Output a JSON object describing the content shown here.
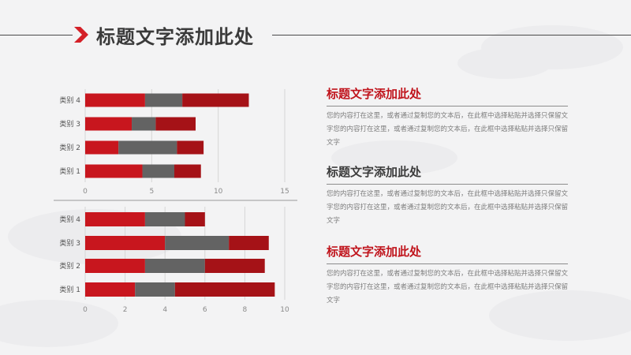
{
  "header": {
    "title": "标题文字添加此处"
  },
  "sections": [
    {
      "title": "标题文字添加此处",
      "body": "您的内容打在这里，或者通过复制您的文本后，在此框中选择粘贴并选择只保留文字您的内容打在这里，或者通过复制您的文本后，在此框中选择粘贴并选择只保留文字"
    },
    {
      "title": "标题文字添加此处",
      "body": "您的内容打在这里，或者通过复制您的文本后，在此框中选择粘贴并选择只保留文字您的内容打在这里，或者通过复制您的文本后，在此框中选择粘贴并选择只保留文字"
    },
    {
      "title": "标题文字添加此处",
      "body": "您的内容打在这里，或者通过复制您的文本后，在此框中选择粘贴并选择只保留文字您的内容打在这里，或者通过复制您的文本后，在此框中选择粘贴并选择只保留文字"
    }
  ],
  "colors": {
    "series1": "#c8161e",
    "series2": "#636363",
    "series3": "#a51217",
    "accent": "#d42027"
  },
  "chart_data": [
    {
      "type": "bar",
      "orientation": "horizontal",
      "stacked": true,
      "categories": [
        "类别 1",
        "类别 2",
        "类别 3",
        "类别 4"
      ],
      "series": [
        {
          "values": [
            4.3,
            2.5,
            3.5,
            4.5
          ]
        },
        {
          "values": [
            2.4,
            4.4,
            1.8,
            2.8
          ]
        },
        {
          "values": [
            2.0,
            2.0,
            3.0,
            5.0
          ]
        }
      ],
      "xlim": [
        0,
        15
      ],
      "xticks": [
        "0",
        "5",
        "10",
        "15"
      ],
      "grid": true
    },
    {
      "type": "bar",
      "orientation": "horizontal",
      "stacked": true,
      "categories": [
        "类别 1",
        "类别 2",
        "类别 3",
        "类别 4"
      ],
      "series": [
        {
          "values": [
            2.5,
            3.0,
            4.0,
            3.0
          ]
        },
        {
          "values": [
            2.0,
            3.0,
            3.2,
            2.0
          ]
        },
        {
          "values": [
            5.0,
            3.0,
            2.0,
            1.0
          ]
        }
      ],
      "xlim": [
        0,
        10
      ],
      "xticks": [
        "0",
        "2",
        "4",
        "6",
        "8",
        "10"
      ],
      "grid": true
    }
  ]
}
